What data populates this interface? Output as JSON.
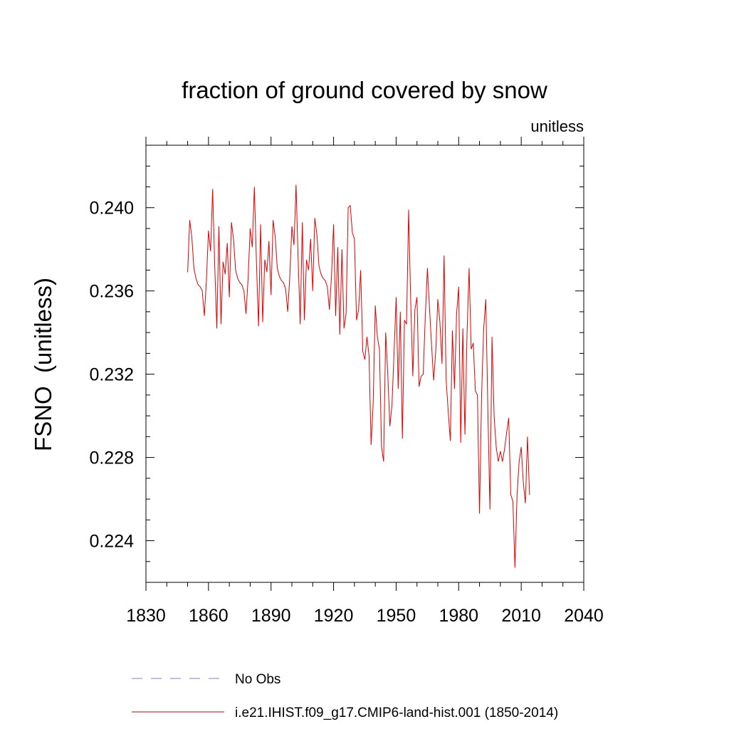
{
  "chart_data": {
    "type": "line",
    "title": "fraction of ground covered by snow",
    "units_label": "unitless",
    "ylabel": "FSNO  (unitless)",
    "xlabel": "",
    "xlim": [
      1830,
      2040
    ],
    "ylim": [
      0.222,
      0.243
    ],
    "x_ticks": [
      1830,
      1860,
      1890,
      1920,
      1950,
      1980,
      2010,
      2040
    ],
    "x_tick_labels": [
      "1830",
      "1860",
      "1890",
      "1920",
      "1950",
      "1980",
      "2010",
      "2040"
    ],
    "y_ticks": [
      0.224,
      0.228,
      0.232,
      0.236,
      0.24
    ],
    "y_tick_labels": [
      "0.224",
      "0.228",
      "0.232",
      "0.236",
      "0.240"
    ],
    "grid": false,
    "legend_position": "bottom-left, below plot",
    "legend": [
      {
        "label": "No Obs",
        "color": "#8080c0",
        "style": "dashed"
      },
      {
        "label": "i.e21.IHIST.f09_g17.CMIP6-land-hist.001 (1850-2014)",
        "color": "#e00000",
        "style": "solid"
      }
    ],
    "series": [
      {
        "name": "i.e21.IHIST.f09_g17.CMIP6-land-hist.001 (1850-2014)",
        "color": "#e00000",
        "x_start": 1850,
        "x_step": 1,
        "values": [
          0.2369,
          0.2394,
          0.2386,
          0.2371,
          0.2366,
          0.2363,
          0.2362,
          0.236,
          0.2348,
          0.2365,
          0.2389,
          0.2379,
          0.2409,
          0.2372,
          0.2342,
          0.2391,
          0.2344,
          0.2374,
          0.2368,
          0.2383,
          0.2357,
          0.2393,
          0.2385,
          0.237,
          0.2366,
          0.2364,
          0.2363,
          0.236,
          0.2349,
          0.2366,
          0.239,
          0.2381,
          0.241,
          0.2374,
          0.2343,
          0.2392,
          0.2345,
          0.2375,
          0.2369,
          0.2384,
          0.2358,
          0.2394,
          0.2386,
          0.2371,
          0.2367,
          0.2365,
          0.2364,
          0.2361,
          0.235,
          0.2367,
          0.2391,
          0.2382,
          0.2411,
          0.2375,
          0.2344,
          0.2393,
          0.2346,
          0.2375,
          0.237,
          0.2385,
          0.236,
          0.2395,
          0.2387,
          0.2372,
          0.2368,
          0.2366,
          0.2365,
          0.2362,
          0.2351,
          0.2367,
          0.2392,
          0.2348,
          0.2381,
          0.2339,
          0.238,
          0.2342,
          0.2349,
          0.24,
          0.2401,
          0.2388,
          0.2385,
          0.2346,
          0.2351,
          0.237,
          0.2331,
          0.2327,
          0.2338,
          0.2329,
          0.2286,
          0.2306,
          0.2353,
          0.2338,
          0.2332,
          0.2285,
          0.2278,
          0.234,
          0.232,
          0.2295,
          0.2305,
          0.233,
          0.2357,
          0.2313,
          0.235,
          0.2289,
          0.2346,
          0.2344,
          0.2399,
          0.2355,
          0.2319,
          0.2351,
          0.2357,
          0.2314,
          0.2319,
          0.232,
          0.2348,
          0.2371,
          0.2352,
          0.2334,
          0.2317,
          0.2331,
          0.2356,
          0.2345,
          0.2325,
          0.2377,
          0.2317,
          0.2302,
          0.2288,
          0.2341,
          0.2313,
          0.2349,
          0.2362,
          0.2287,
          0.2342,
          0.2291,
          0.2339,
          0.2371,
          0.2332,
          0.2335,
          0.2312,
          0.231,
          0.2253,
          0.231,
          0.2342,
          0.2356,
          0.2303,
          0.2255,
          0.2338,
          0.23,
          0.2285,
          0.2278,
          0.2283,
          0.2278,
          0.2284,
          0.2292,
          0.2299,
          0.2262,
          0.2259,
          0.2227,
          0.2262,
          0.2278,
          0.2285,
          0.2268,
          0.2258,
          0.229,
          0.2262
        ]
      }
    ]
  }
}
